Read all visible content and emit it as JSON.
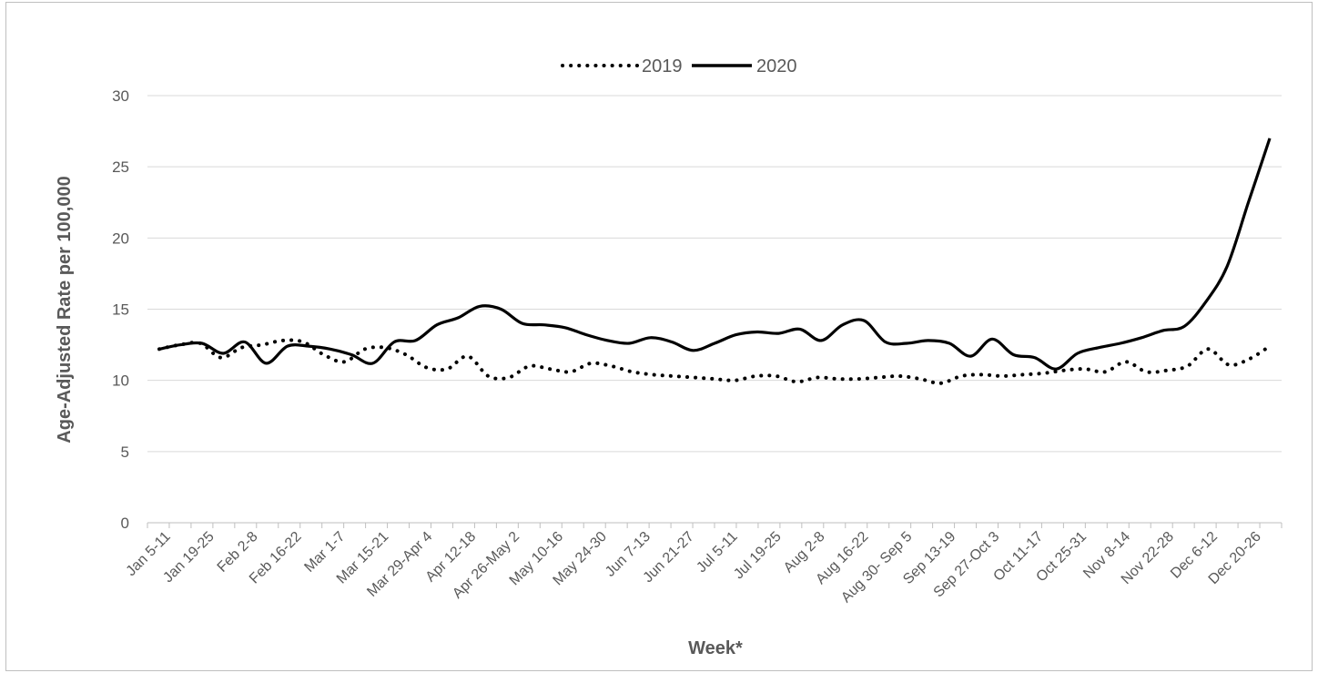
{
  "chart_data": {
    "type": "line",
    "title": "",
    "xlabel": "Week*",
    "ylabel": "Age-Adjusted Rate per 100,000",
    "ylim": [
      0,
      30
    ],
    "yticks": [
      0,
      5,
      10,
      15,
      20,
      25,
      30
    ],
    "grid": "horizontal",
    "legend_position": "top-center",
    "tick_labels": [
      "Jan 5-11",
      "Jan 19-25",
      "Feb 2-8",
      "Feb 16-22",
      "Mar 1-7",
      "Mar 15-21",
      "Mar 29-Apr 4",
      "Apr 12-18",
      "Apr 26-May 2",
      "May 10-16",
      "May 24-30",
      "Jun 7-13",
      "Jun 21-27",
      "Jul 5-11",
      "Jul 19-25",
      "Aug 2-8",
      "Aug 16-22",
      "Aug 30- Sep 5",
      "Sep 13-19",
      "Sep 27-Oct 3",
      "Oct 11-17",
      "Oct 25-31",
      "Nov 8-14",
      "Nov 22-28",
      "Dec 6-12",
      "Dec 20-26"
    ],
    "series": [
      {
        "name": "2019",
        "style": "dotted",
        "color": "#000000",
        "values": [
          12.2,
          12.5,
          12.6,
          11.6,
          12.3,
          12.5,
          12.8,
          12.7,
          11.8,
          11.3,
          12.2,
          12.3,
          11.8,
          10.9,
          10.8,
          11.7,
          10.3,
          10.2,
          11.0,
          10.8,
          10.6,
          11.2,
          11.0,
          10.6,
          10.4,
          10.3,
          10.2,
          10.1,
          10.0,
          10.3,
          10.3,
          9.9,
          10.2,
          10.1,
          10.1,
          10.2,
          10.3,
          10.1,
          9.8,
          10.3,
          10.4,
          10.3,
          10.4,
          10.5,
          10.7,
          10.8,
          10.6,
          11.3,
          10.6,
          10.7,
          11.0,
          12.2,
          11.1,
          11.5,
          12.4
        ]
      },
      {
        "name": "2020",
        "style": "solid",
        "color": "#000000",
        "values": [
          12.2,
          12.5,
          12.6,
          11.9,
          12.7,
          11.2,
          12.4,
          12.4,
          12.2,
          11.8,
          11.2,
          12.7,
          12.8,
          13.9,
          14.4,
          15.2,
          15.0,
          14.0,
          13.9,
          13.7,
          13.2,
          12.8,
          12.6,
          13.0,
          12.7,
          12.1,
          12.6,
          13.2,
          13.4,
          13.3,
          13.6,
          12.8,
          13.9,
          14.2,
          12.7,
          12.6,
          12.8,
          12.6,
          11.7,
          12.9,
          11.8,
          11.6,
          10.8,
          11.9,
          12.3,
          12.6,
          13.0,
          13.5,
          13.8,
          15.5,
          18.0,
          22.5,
          27.0
        ]
      }
    ]
  }
}
